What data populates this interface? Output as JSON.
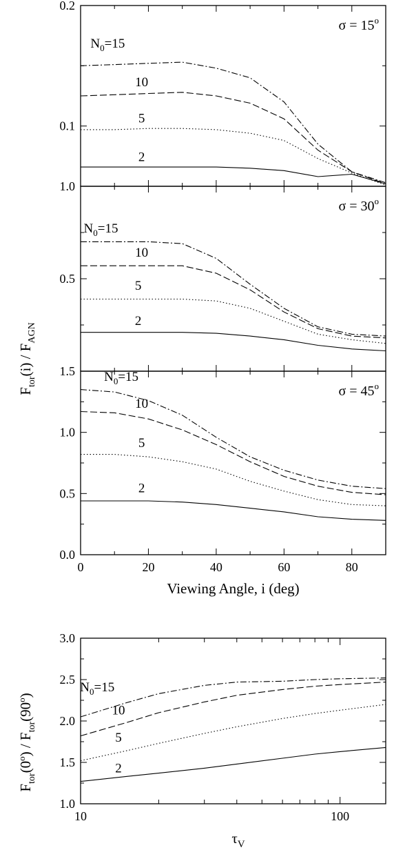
{
  "chart_data": [
    {
      "type": "line",
      "panel": "top",
      "annotation": {
        "sigma": "σ = 15",
        "sup": "o"
      },
      "xlim": [
        0,
        90
      ],
      "ylim": [
        0.05,
        0.2
      ],
      "yticks": [
        "0.1",
        "0.2"
      ],
      "ytick_values": [
        0.1,
        0.2
      ],
      "series": [
        {
          "name": "N0=15",
          "dash": "dashdot",
          "x": [
            0,
            10,
            20,
            30,
            40,
            50,
            60,
            70,
            80,
            90
          ],
          "y": [
            0.15,
            0.151,
            0.152,
            0.153,
            0.148,
            0.14,
            0.12,
            0.085,
            0.062,
            0.053
          ]
        },
        {
          "name": "10",
          "dash": "dash",
          "x": [
            0,
            10,
            20,
            30,
            40,
            50,
            60,
            70,
            80,
            90
          ],
          "y": [
            0.125,
            0.126,
            0.127,
            0.128,
            0.125,
            0.119,
            0.106,
            0.08,
            0.062,
            0.052
          ]
        },
        {
          "name": "5",
          "dash": "dot",
          "x": [
            0,
            10,
            20,
            30,
            40,
            50,
            60,
            70,
            80,
            90
          ],
          "y": [
            0.097,
            0.097,
            0.098,
            0.098,
            0.097,
            0.094,
            0.088,
            0.073,
            0.061,
            0.051
          ]
        },
        {
          "name": "2",
          "dash": "solid",
          "x": [
            0,
            10,
            20,
            30,
            40,
            50,
            60,
            70,
            80,
            90
          ],
          "y": [
            0.066,
            0.066,
            0.066,
            0.066,
            0.066,
            0.065,
            0.063,
            0.058,
            0.06,
            0.052
          ]
        }
      ],
      "labels": [
        {
          "base": "N",
          "sub": "0",
          "rest": "=15",
          "x": 8,
          "y": 0.165
        },
        {
          "text": "10",
          "x": 18,
          "y": 0.133
        },
        {
          "text": "5",
          "x": 18,
          "y": 0.103
        },
        {
          "text": "2",
          "x": 18,
          "y": 0.071
        }
      ]
    },
    {
      "type": "line",
      "panel": "middle",
      "annotation": {
        "sigma": "σ = 30",
        "sup": "o"
      },
      "xlim": [
        0,
        90
      ],
      "ylim": [
        0,
        1.0
      ],
      "yticks": [
        "0.5",
        "1.0"
      ],
      "ytick_values": [
        0.5,
        1.0
      ],
      "series": [
        {
          "name": "N0=15",
          "dash": "dashdot",
          "x": [
            0,
            10,
            20,
            30,
            40,
            50,
            60,
            70,
            80,
            90
          ],
          "y": [
            0.7,
            0.7,
            0.7,
            0.69,
            0.61,
            0.47,
            0.34,
            0.24,
            0.2,
            0.19
          ]
        },
        {
          "name": "10",
          "dash": "dash",
          "x": [
            0,
            10,
            20,
            30,
            40,
            50,
            60,
            70,
            80,
            90
          ],
          "y": [
            0.57,
            0.57,
            0.57,
            0.57,
            0.53,
            0.44,
            0.32,
            0.23,
            0.19,
            0.18
          ]
        },
        {
          "name": "5",
          "dash": "dot",
          "x": [
            0,
            10,
            20,
            30,
            40,
            50,
            60,
            70,
            80,
            90
          ],
          "y": [
            0.39,
            0.39,
            0.39,
            0.39,
            0.38,
            0.34,
            0.27,
            0.2,
            0.17,
            0.15
          ]
        },
        {
          "name": "2",
          "dash": "solid",
          "x": [
            0,
            10,
            20,
            30,
            40,
            50,
            60,
            70,
            80,
            90
          ],
          "y": [
            0.21,
            0.21,
            0.21,
            0.21,
            0.205,
            0.19,
            0.17,
            0.14,
            0.12,
            0.11
          ]
        }
      ],
      "labels": [
        {
          "base": "N",
          "sub": "0",
          "rest": "=15",
          "x": 6,
          "y": 0.75
        },
        {
          "text": "10",
          "x": 18,
          "y": 0.62
        },
        {
          "text": "5",
          "x": 17,
          "y": 0.44
        },
        {
          "text": "2",
          "x": 17,
          "y": 0.25
        }
      ]
    },
    {
      "type": "line",
      "panel": "bottom",
      "annotation": {
        "sigma": "σ = 45",
        "sup": "o"
      },
      "xlim": [
        0,
        90
      ],
      "ylim": [
        0,
        1.5
      ],
      "yticks": [
        "0.0",
        "0.5",
        "1.0",
        "1.5"
      ],
      "ytick_values": [
        0,
        0.5,
        1.0,
        1.5
      ],
      "xticks": [
        "0",
        "20",
        "40",
        "60",
        "80"
      ],
      "xtick_values": [
        0,
        20,
        40,
        60,
        80
      ],
      "xlabel": "Viewing Angle, i (deg)",
      "series": [
        {
          "name": "N0=15",
          "dash": "dashdot",
          "x": [
            0,
            10,
            20,
            30,
            40,
            50,
            60,
            70,
            80,
            90
          ],
          "y": [
            1.35,
            1.33,
            1.26,
            1.14,
            0.96,
            0.8,
            0.69,
            0.61,
            0.56,
            0.54
          ]
        },
        {
          "name": "10",
          "dash": "dash",
          "x": [
            0,
            10,
            20,
            30,
            40,
            50,
            60,
            70,
            80,
            90
          ],
          "y": [
            1.17,
            1.16,
            1.11,
            1.02,
            0.9,
            0.76,
            0.64,
            0.56,
            0.51,
            0.49
          ]
        },
        {
          "name": "5",
          "dash": "dot",
          "x": [
            0,
            10,
            20,
            30,
            40,
            50,
            60,
            70,
            80,
            90
          ],
          "y": [
            0.82,
            0.82,
            0.8,
            0.76,
            0.7,
            0.6,
            0.52,
            0.45,
            0.41,
            0.4
          ]
        },
        {
          "name": "2",
          "dash": "solid",
          "x": [
            0,
            10,
            20,
            30,
            40,
            50,
            60,
            70,
            80,
            90
          ],
          "y": [
            0.44,
            0.44,
            0.44,
            0.43,
            0.41,
            0.38,
            0.35,
            0.31,
            0.29,
            0.28
          ]
        }
      ],
      "labels": [
        {
          "base": "N",
          "sub": "0",
          "rest": "=15",
          "x": 12,
          "y": 1.42
        },
        {
          "text": "10",
          "x": 18,
          "y": 1.2
        },
        {
          "text": "5",
          "x": 18,
          "y": 0.88
        },
        {
          "text": "2",
          "x": 18,
          "y": 0.51
        }
      ]
    },
    {
      "type": "line",
      "panel": "lower",
      "xscale": "log",
      "xlim": [
        10,
        150
      ],
      "ylim": [
        1.0,
        3.0
      ],
      "yticks": [
        "1.0",
        "1.5",
        "2.0",
        "2.5",
        "3.0"
      ],
      "ytick_values": [
        1.0,
        1.5,
        2.0,
        2.5,
        3.0
      ],
      "xticks": [
        "10",
        "100"
      ],
      "xtick_values": [
        10,
        100
      ],
      "series": [
        {
          "name": "N0=15",
          "dash": "dashdot",
          "x": [
            10,
            15,
            20,
            30,
            40,
            60,
            80,
            100,
            150
          ],
          "y": [
            2.05,
            2.22,
            2.33,
            2.43,
            2.47,
            2.48,
            2.5,
            2.51,
            2.52
          ]
        },
        {
          "name": "10",
          "dash": "dash",
          "x": [
            10,
            15,
            20,
            30,
            40,
            60,
            80,
            100,
            150
          ],
          "y": [
            1.82,
            1.98,
            2.1,
            2.23,
            2.31,
            2.38,
            2.42,
            2.44,
            2.47
          ]
        },
        {
          "name": "5",
          "dash": "dot",
          "x": [
            10,
            15,
            20,
            30,
            40,
            60,
            80,
            100,
            150
          ],
          "y": [
            1.52,
            1.64,
            1.73,
            1.85,
            1.93,
            2.03,
            2.09,
            2.13,
            2.2
          ]
        },
        {
          "name": "2",
          "dash": "solid",
          "x": [
            10,
            15,
            20,
            30,
            40,
            60,
            80,
            100,
            150
          ],
          "y": [
            1.27,
            1.33,
            1.37,
            1.43,
            1.48,
            1.55,
            1.6,
            1.63,
            1.68
          ]
        }
      ],
      "labels": [
        {
          "base": "N",
          "sub": "0",
          "rest": "=15",
          "x": 11.6,
          "y": 2.36
        },
        {
          "text": "10",
          "x": 14,
          "y": 2.08
        },
        {
          "text": "5",
          "x": 14,
          "y": 1.75
        },
        {
          "text": "2",
          "x": 14,
          "y": 1.38
        }
      ]
    }
  ],
  "axes": {
    "upper_ylabel": {
      "a": "F",
      "a_sub": "tor",
      "b": "(i) / F",
      "b_sub": "AGN"
    },
    "lower_ylabel": {
      "a": "F",
      "a_sub": "tor",
      "b": "(0",
      "b_sup": "o",
      "c": ") / F",
      "c_sub": "tor",
      "d": "(90",
      "d_sup": "o",
      "e": ")"
    },
    "lower_xlabel": {
      "base": "τ",
      "sub": "V"
    }
  }
}
